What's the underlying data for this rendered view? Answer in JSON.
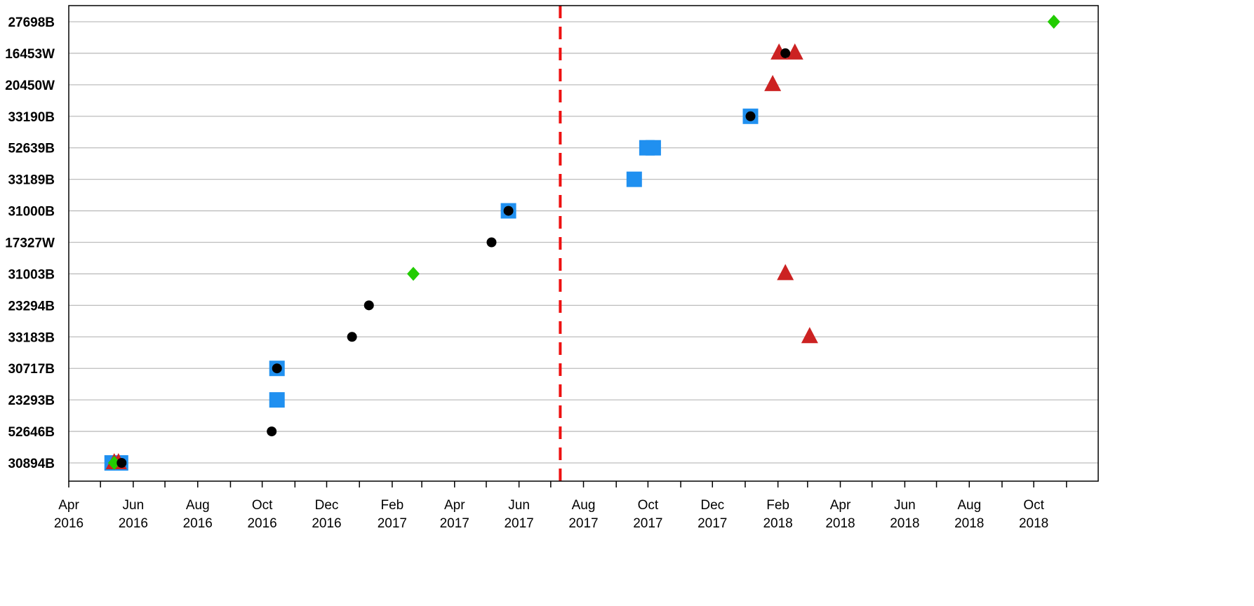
{
  "chart_data": {
    "type": "scatter",
    "title": "",
    "xlabel": "",
    "ylabel": "",
    "x_axis": {
      "type": "date",
      "range": [
        "2016-04-01",
        "2018-12-01"
      ],
      "major_ticks": [
        {
          "date": "2016-04-01",
          "label": [
            "Apr",
            "2016"
          ]
        },
        {
          "date": "2016-06-01",
          "label": [
            "Jun",
            "2016"
          ]
        },
        {
          "date": "2016-08-01",
          "label": [
            "Aug",
            "2016"
          ]
        },
        {
          "date": "2016-10-01",
          "label": [
            "Oct",
            "2016"
          ]
        },
        {
          "date": "2016-12-01",
          "label": [
            "Dec",
            "2016"
          ]
        },
        {
          "date": "2017-02-01",
          "label": [
            "Feb",
            "2017"
          ]
        },
        {
          "date": "2017-04-01",
          "label": [
            "Apr",
            "2017"
          ]
        },
        {
          "date": "2017-06-01",
          "label": [
            "Jun",
            "2017"
          ]
        },
        {
          "date": "2017-08-01",
          "label": [
            "Aug",
            "2017"
          ]
        },
        {
          "date": "2017-10-01",
          "label": [
            "Oct",
            "2017"
          ]
        },
        {
          "date": "2017-12-01",
          "label": [
            "Dec",
            "2017"
          ]
        },
        {
          "date": "2018-02-01",
          "label": [
            "Feb",
            "2018"
          ]
        },
        {
          "date": "2018-04-01",
          "label": [
            "Apr",
            "2018"
          ]
        },
        {
          "date": "2018-06-01",
          "label": [
            "Jun",
            "2018"
          ]
        },
        {
          "date": "2018-08-01",
          "label": [
            "Aug",
            "2018"
          ]
        },
        {
          "date": "2018-10-01",
          "label": [
            "Oct",
            "2018"
          ]
        }
      ],
      "minor_ticks": [
        "2016-05-01",
        "2016-07-01",
        "2016-09-01",
        "2016-11-01",
        "2017-01-01",
        "2017-03-01",
        "2017-05-01",
        "2017-07-01",
        "2017-09-01",
        "2017-11-01",
        "2018-01-01",
        "2018-03-01",
        "2018-05-01",
        "2018-07-01",
        "2018-09-01",
        "2018-11-01"
      ]
    },
    "categories": [
      "30894B",
      "52646B",
      "23293B",
      "30717B",
      "33183B",
      "23294B",
      "31003B",
      "17327W",
      "31000B",
      "33189B",
      "52639B",
      "33190B",
      "20450W",
      "16453W",
      "27698B"
    ],
    "grid": true,
    "reference_line": {
      "date": "2017-07-10",
      "color": "#ee1111",
      "style": "dashed"
    },
    "series": [
      {
        "marker": "square",
        "color": "#2090f0",
        "points": [
          {
            "category": "30894B",
            "x": "2016-05-12"
          },
          {
            "category": "30894B",
            "x": "2016-05-16"
          },
          {
            "category": "30894B",
            "x": "2016-05-20"
          },
          {
            "category": "23293B",
            "x": "2016-10-15"
          },
          {
            "category": "30717B",
            "x": "2016-10-15"
          },
          {
            "category": "31000B",
            "x": "2017-05-22"
          },
          {
            "category": "33189B",
            "x": "2017-09-18"
          },
          {
            "category": "52639B",
            "x": "2017-09-30"
          },
          {
            "category": "52639B",
            "x": "2017-10-06"
          },
          {
            "category": "33190B",
            "x": "2018-01-06"
          }
        ]
      },
      {
        "marker": "triangle",
        "color": "#cc2222",
        "points": [
          {
            "category": "30894B",
            "x": "2016-05-14"
          },
          {
            "category": "30894B",
            "x": "2016-05-18"
          },
          {
            "category": "31003B",
            "x": "2018-02-08"
          },
          {
            "category": "33183B",
            "x": "2018-03-03"
          },
          {
            "category": "20450W",
            "x": "2018-01-27"
          },
          {
            "category": "16453W",
            "x": "2018-02-02"
          },
          {
            "category": "16453W",
            "x": "2018-02-17"
          }
        ]
      },
      {
        "marker": "diamond",
        "color": "#22cc00",
        "points": [
          {
            "category": "30894B",
            "x": "2016-05-14"
          },
          {
            "category": "31003B",
            "x": "2017-02-21"
          },
          {
            "category": "27698B",
            "x": "2018-10-20"
          }
        ]
      },
      {
        "marker": "circle",
        "color": "#000000",
        "points": [
          {
            "category": "30894B",
            "x": "2016-05-21"
          },
          {
            "category": "52646B",
            "x": "2016-10-10"
          },
          {
            "category": "30717B",
            "x": "2016-10-15"
          },
          {
            "category": "33183B",
            "x": "2016-12-25"
          },
          {
            "category": "23294B",
            "x": "2017-01-10"
          },
          {
            "category": "17327W",
            "x": "2017-05-06"
          },
          {
            "category": "31000B",
            "x": "2017-05-22"
          },
          {
            "category": "33190B",
            "x": "2018-01-06"
          },
          {
            "category": "16453W",
            "x": "2018-02-08"
          }
        ]
      }
    ]
  }
}
